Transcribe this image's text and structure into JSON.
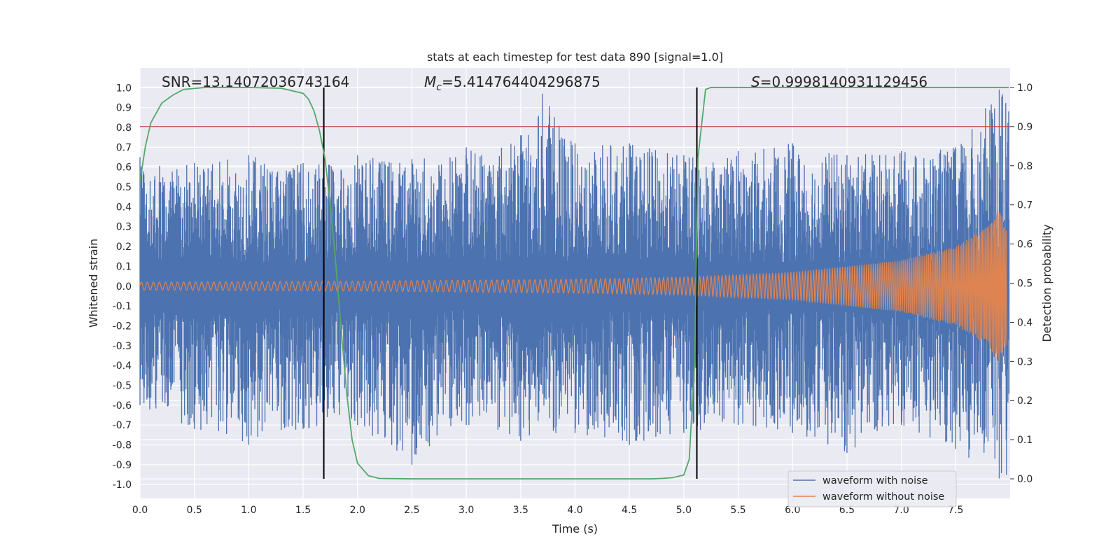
{
  "chart_data": {
    "type": "line",
    "title": "stats at each timestep for test data 890 [signal=1.0]",
    "xlabel": "Time (s)",
    "ylabel_left": "Whitened strain",
    "ylabel_right": "Detection probability",
    "xlim": [
      0.0,
      8.0
    ],
    "ylim_left": [
      -1.07,
      1.1
    ],
    "ylim_right": [
      -0.05,
      1.05
    ],
    "x_ticks": [
      "0.0",
      "0.5",
      "1.0",
      "1.5",
      "2.0",
      "2.5",
      "3.0",
      "3.5",
      "4.0",
      "4.5",
      "5.0",
      "5.5",
      "6.0",
      "6.5",
      "7.0",
      "7.5"
    ],
    "y_ticks_left": [
      "1.0",
      "0.9",
      "0.8",
      "0.7",
      "0.6",
      "0.5",
      "0.4",
      "0.3",
      "0.2",
      "0.1",
      "0.0",
      "-0.1",
      "-0.2",
      "-0.3",
      "-0.4",
      "-0.5",
      "-0.6",
      "-0.7",
      "-0.8",
      "-0.9",
      "-1.0"
    ],
    "y_ticks_right": [
      "1.0",
      "0.9",
      "0.8",
      "0.7",
      "0.6",
      "0.5",
      "0.4",
      "0.3",
      "0.2",
      "0.1",
      "0.0"
    ],
    "grid": true,
    "legend_position": "lower-right",
    "annotations": {
      "snr": "SNR=13.14072036743164",
      "mc_symbol": "M",
      "mc_sub": "c",
      "mc_value": "=5.414764404296875",
      "s_symbol": "S",
      "s_value": "=0.9998140931129456"
    },
    "series": [
      {
        "name": "waveform with noise",
        "color": "#4c72b0",
        "envelope_upper": [
          [
            0.0,
            0.65
          ],
          [
            0.5,
            0.62
          ],
          [
            1.0,
            0.66
          ],
          [
            1.5,
            0.62
          ],
          [
            2.0,
            0.66
          ],
          [
            2.5,
            0.64
          ],
          [
            3.0,
            0.7
          ],
          [
            3.5,
            0.76
          ],
          [
            3.7,
            0.97
          ],
          [
            4.0,
            0.72
          ],
          [
            4.5,
            0.72
          ],
          [
            5.0,
            0.66
          ],
          [
            5.5,
            0.68
          ],
          [
            6.0,
            0.72
          ],
          [
            6.5,
            0.66
          ],
          [
            7.0,
            0.68
          ],
          [
            7.5,
            0.7
          ],
          [
            7.9,
            0.99
          ]
        ],
        "envelope_lower": [
          [
            0.0,
            -0.6
          ],
          [
            0.5,
            -0.72
          ],
          [
            1.0,
            -0.8
          ],
          [
            1.5,
            -0.72
          ],
          [
            2.0,
            -0.7
          ],
          [
            2.5,
            -0.9
          ],
          [
            3.0,
            -0.7
          ],
          [
            3.5,
            -0.78
          ],
          [
            4.0,
            -0.74
          ],
          [
            4.5,
            -0.8
          ],
          [
            5.0,
            -0.74
          ],
          [
            5.5,
            -0.7
          ],
          [
            6.0,
            -0.74
          ],
          [
            6.5,
            -0.84
          ],
          [
            7.0,
            -0.7
          ],
          [
            7.5,
            -0.82
          ],
          [
            7.9,
            -0.97
          ]
        ]
      },
      {
        "name": "waveform without noise",
        "color": "#dd8452",
        "amplitude": [
          [
            0.0,
            0.02
          ],
          [
            2.0,
            0.025
          ],
          [
            4.0,
            0.035
          ],
          [
            5.0,
            0.045
          ],
          [
            6.0,
            0.07
          ],
          [
            7.0,
            0.13
          ],
          [
            7.5,
            0.2
          ],
          [
            7.8,
            0.3
          ],
          [
            7.9,
            0.4
          ],
          [
            7.95,
            0.3
          ]
        ]
      },
      {
        "name": "detection probability",
        "color": "#55a868",
        "x": [
          0.0,
          0.05,
          0.1,
          0.2,
          0.3,
          0.4,
          0.6,
          1.0,
          1.3,
          1.5,
          1.55,
          1.6,
          1.65,
          1.7,
          1.75,
          1.8,
          1.85,
          1.9,
          1.95,
          2.0,
          2.1,
          2.2,
          2.5,
          3.0,
          4.0,
          4.5,
          4.7,
          4.8,
          4.9,
          5.0,
          5.05,
          5.1,
          5.13,
          5.2,
          5.25,
          5.5,
          6.0,
          7.0,
          7.99
        ],
        "y": [
          0.76,
          0.85,
          0.91,
          0.96,
          0.98,
          0.995,
          1.0,
          1.0,
          0.998,
          0.985,
          0.97,
          0.94,
          0.89,
          0.82,
          0.7,
          0.55,
          0.38,
          0.22,
          0.1,
          0.04,
          0.008,
          0.001,
          0.0,
          0.0,
          0.0,
          0.0,
          0.0,
          0.001,
          0.003,
          0.01,
          0.05,
          0.3,
          0.82,
          0.995,
          1.0,
          1.0,
          1.0,
          1.0,
          1.0
        ]
      }
    ],
    "hlines": [
      {
        "axis": "right",
        "value": 0.9,
        "color": "#c44e52"
      }
    ],
    "vlines": [
      {
        "x": 1.69,
        "color": "#000000"
      },
      {
        "x": 5.12,
        "color": "#000000"
      }
    ]
  }
}
